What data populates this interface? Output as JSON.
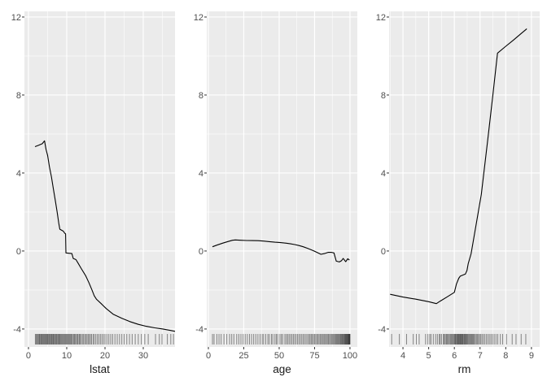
{
  "figure": {
    "kind": "r-ggplot-three-panel-smooth",
    "background": "#ffffff",
    "panel_background": "#ebebeb",
    "grid_color": "#ffffff",
    "curve_color": "#000000",
    "tick_mark_color": "#333333",
    "tick_label_color": "#4d4d4d",
    "axis_title_color": "#1a1a1a",
    "rug_color": "#1a1a1a"
  },
  "y_axis": {
    "ticks": [
      -4,
      0,
      4,
      8,
      12
    ],
    "tick_labels": [
      "-4",
      "0",
      "4",
      "8",
      "12"
    ],
    "range": [
      -4.92,
      12.29
    ]
  },
  "chart_data": [
    {
      "type": "line",
      "title": "",
      "xlabel": "lstat",
      "ylabel": "",
      "legend": "none",
      "grid": "on",
      "x_ticks": [
        0,
        10,
        20,
        30
      ],
      "x_tick_labels": [
        "0",
        "10",
        "20",
        "30"
      ],
      "x_range": [
        -1.06,
        38.3
      ],
      "ylim": [
        -4.92,
        12.29
      ],
      "curve": [
        [
          1.7,
          5.35
        ],
        [
          2.6,
          5.42
        ],
        [
          3.6,
          5.5
        ],
        [
          4.2,
          5.65
        ],
        [
          4.6,
          5.2
        ],
        [
          5.0,
          4.9
        ],
        [
          5.5,
          4.3
        ],
        [
          6.0,
          3.8
        ],
        [
          6.5,
          3.2
        ],
        [
          7.0,
          2.6
        ],
        [
          7.5,
          2.0
        ],
        [
          7.9,
          1.45
        ],
        [
          8.2,
          1.12
        ],
        [
          9.1,
          1.02
        ],
        [
          9.45,
          0.92
        ],
        [
          9.7,
          0.88
        ],
        [
          9.78,
          -0.1
        ],
        [
          11.35,
          -0.13
        ],
        [
          11.7,
          -0.38
        ],
        [
          12.4,
          -0.44
        ],
        [
          12.9,
          -0.6
        ],
        [
          13.8,
          -0.9
        ],
        [
          14.9,
          -1.25
        ],
        [
          15.8,
          -1.62
        ],
        [
          16.6,
          -2.0
        ],
        [
          17.2,
          -2.3
        ],
        [
          17.8,
          -2.48
        ],
        [
          19.0,
          -2.7
        ],
        [
          20.3,
          -2.95
        ],
        [
          22.2,
          -3.25
        ],
        [
          24.4,
          -3.45
        ],
        [
          26.5,
          -3.62
        ],
        [
          28.7,
          -3.76
        ],
        [
          30.8,
          -3.86
        ],
        [
          33.0,
          -3.94
        ],
        [
          35.1,
          -4.0
        ],
        [
          37.0,
          -4.07
        ],
        [
          38.3,
          -4.12
        ]
      ],
      "rug": [
        1.8,
        2.0,
        2.2,
        2.4,
        2.6,
        2.8,
        2.9,
        3.1,
        3.3,
        3.5,
        3.6,
        3.8,
        4.0,
        4.1,
        4.3,
        4.5,
        4.6,
        4.8,
        5.0,
        5.1,
        5.3,
        5.5,
        5.6,
        5.8,
        6.0,
        6.1,
        6.3,
        6.5,
        6.6,
        6.8,
        7.0,
        7.2,
        7.3,
        7.5,
        7.7,
        7.9,
        8.0,
        8.2,
        8.4,
        8.6,
        8.8,
        9.0,
        9.2,
        9.4,
        9.6,
        9.8,
        10.0,
        10.2,
        10.4,
        10.6,
        10.8,
        11.0,
        11.2,
        11.4,
        11.7,
        11.9,
        12.1,
        12.3,
        12.6,
        12.8,
        13.0,
        13.3,
        13.5,
        13.8,
        14.1,
        14.4,
        14.7,
        15.0,
        15.3,
        15.6,
        15.9,
        16.2,
        16.5,
        16.9,
        17.2,
        17.6,
        18.0,
        18.4,
        18.8,
        19.2,
        19.6,
        20.0,
        20.5,
        21.0,
        21.5,
        22.0,
        22.6,
        23.2,
        23.8,
        24.4,
        25.0,
        25.7,
        26.4,
        27.1,
        27.9,
        28.7,
        29.5,
        30.4,
        31.3,
        33.2,
        34.2,
        34.9,
        36.3,
        37.2,
        37.9
      ]
    },
    {
      "type": "line",
      "title": "",
      "xlabel": "age",
      "ylabel": "",
      "legend": "none",
      "grid": "on",
      "x_ticks": [
        0,
        25,
        50,
        75,
        100
      ],
      "x_tick_labels": [
        "0",
        "25",
        "50",
        "75",
        "100"
      ],
      "x_range": [
        -1.15,
        105.2
      ],
      "ylim": [
        -4.92,
        12.29
      ],
      "curve": [
        [
          2.9,
          0.22
        ],
        [
          6,
          0.3
        ],
        [
          10,
          0.4
        ],
        [
          14,
          0.49
        ],
        [
          17,
          0.55
        ],
        [
          19,
          0.57
        ],
        [
          23,
          0.55
        ],
        [
          27,
          0.54
        ],
        [
          31,
          0.535
        ],
        [
          35,
          0.53
        ],
        [
          39,
          0.51
        ],
        [
          43,
          0.48
        ],
        [
          47,
          0.45
        ],
        [
          51,
          0.43
        ],
        [
          55,
          0.4
        ],
        [
          58,
          0.37
        ],
        [
          61,
          0.33
        ],
        [
          64,
          0.28
        ],
        [
          67,
          0.22
        ],
        [
          70,
          0.14
        ],
        [
          73,
          0.05
        ],
        [
          75,
          -0.01
        ],
        [
          77,
          -0.08
        ],
        [
          79.5,
          -0.17
        ],
        [
          82,
          -0.13
        ],
        [
          84.5,
          -0.07
        ],
        [
          87,
          -0.07
        ],
        [
          88.7,
          -0.1
        ],
        [
          90.3,
          -0.52
        ],
        [
          92.5,
          -0.56
        ],
        [
          94,
          -0.5
        ],
        [
          95.2,
          -0.38
        ],
        [
          97,
          -0.55
        ],
        [
          98.4,
          -0.4
        ],
        [
          99.6,
          -0.46
        ]
      ],
      "rug": [
        2.9,
        4,
        6,
        7.5,
        9,
        11,
        13,
        15,
        16.5,
        18,
        20,
        21.5,
        23,
        24.5,
        26,
        27.5,
        29,
        30.5,
        32,
        33.5,
        35,
        36.5,
        38,
        39,
        40.5,
        42,
        43,
        44.5,
        45.5,
        47,
        48,
        49,
        50.5,
        51.5,
        52.5,
        54,
        55,
        56,
        57,
        58,
        59,
        60,
        61,
        62,
        63,
        64,
        65,
        66,
        67,
        68,
        69,
        70,
        71,
        71.8,
        72.6,
        73.4,
        74.2,
        75,
        75.8,
        76.6,
        77.4,
        78.2,
        79,
        79.8,
        80.5,
        81.2,
        82,
        82.7,
        83.4,
        84.1,
        84.8,
        85.5,
        86.2,
        86.9,
        87.5,
        88.1,
        88.7,
        89.3,
        89.9,
        90.4,
        90.9,
        91.4,
        91.9,
        92.4,
        92.9,
        93.4,
        93.8,
        94.2,
        94.6,
        95,
        95.4,
        95.8,
        96.2,
        96.5,
        96.8,
        97.1,
        97.4,
        97.7,
        98,
        98.3,
        98.6,
        98.9,
        99.1,
        99.3,
        99.5,
        99.7,
        99.9,
        100
      ]
    },
    {
      "type": "line",
      "title": "",
      "xlabel": "rm",
      "ylabel": "",
      "legend": "none",
      "grid": "on",
      "x_ticks": [
        4,
        5,
        6,
        7,
        8,
        9
      ],
      "x_tick_labels": [
        "4",
        "5",
        "6",
        "7",
        "8",
        "9"
      ],
      "x_range": [
        3.46,
        9.32
      ],
      "ylim": [
        -4.92,
        12.29
      ],
      "curve": [
        [
          3.5,
          -2.22
        ],
        [
          4.0,
          -2.36
        ],
        [
          4.5,
          -2.47
        ],
        [
          5.0,
          -2.6
        ],
        [
          5.3,
          -2.7
        ],
        [
          5.45,
          -2.57
        ],
        [
          5.75,
          -2.33
        ],
        [
          6.0,
          -2.12
        ],
        [
          6.08,
          -1.7
        ],
        [
          6.17,
          -1.4
        ],
        [
          6.23,
          -1.29
        ],
        [
          6.43,
          -1.18
        ],
        [
          6.49,
          -1.0
        ],
        [
          6.54,
          -0.65
        ],
        [
          6.65,
          -0.15
        ],
        [
          6.72,
          0.38
        ],
        [
          7.05,
          2.9
        ],
        [
          7.3,
          5.7
        ],
        [
          7.5,
          8.0
        ],
        [
          7.68,
          10.15
        ],
        [
          8.0,
          10.5
        ],
        [
          8.3,
          10.82
        ],
        [
          8.55,
          11.1
        ],
        [
          8.82,
          11.4
        ]
      ],
      "rug": [
        3.56,
        3.86,
        4.14,
        4.4,
        4.52,
        4.63,
        4.88,
        4.97,
        5.04,
        5.09,
        5.18,
        5.27,
        5.34,
        5.41,
        5.45,
        5.5,
        5.57,
        5.6,
        5.64,
        5.68,
        5.71,
        5.74,
        5.78,
        5.81,
        5.85,
        5.88,
        5.91,
        5.94,
        5.97,
        6.0,
        6.02,
        6.04,
        6.06,
        6.09,
        6.11,
        6.13,
        6.15,
        6.17,
        6.19,
        6.21,
        6.23,
        6.25,
        6.27,
        6.29,
        6.31,
        6.33,
        6.35,
        6.38,
        6.4,
        6.42,
        6.44,
        6.47,
        6.49,
        6.51,
        6.54,
        6.57,
        6.6,
        6.63,
        6.66,
        6.69,
        6.72,
        6.75,
        6.78,
        6.82,
        6.86,
        6.9,
        6.94,
        6.98,
        7.02,
        7.07,
        7.12,
        7.18,
        7.24,
        7.3,
        7.36,
        7.42,
        7.48,
        7.55,
        7.62,
        7.69,
        7.79,
        7.88,
        8.03,
        8.25,
        8.4,
        8.6,
        8.78
      ]
    }
  ]
}
